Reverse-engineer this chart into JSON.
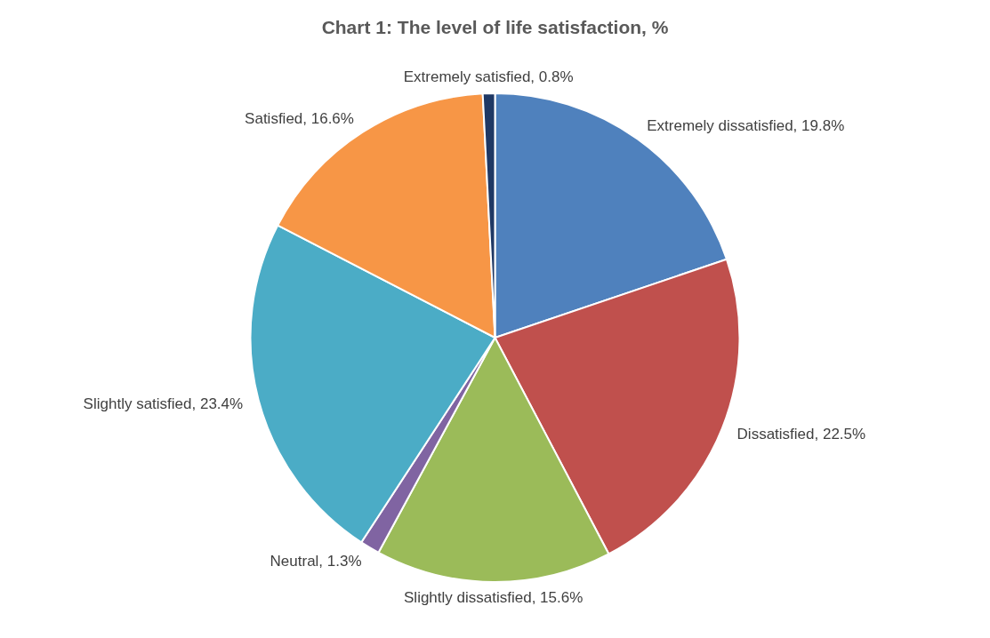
{
  "chart_data": {
    "type": "pie",
    "title": "Chart 1: The level of life satisfaction, %",
    "categories": [
      "Extremely dissatisfied",
      "Dissatisfied",
      "Slightly dissatisfied",
      "Neutral",
      "Slightly satisfied",
      "Satisfied",
      "Extremely satisfied"
    ],
    "values": [
      19.8,
      22.5,
      15.6,
      1.3,
      23.4,
      16.6,
      0.8
    ],
    "value_labels": [
      "19.8%",
      "22.5%",
      "15.6%",
      "1.3%",
      "23.4%",
      "16.6%",
      "0.8%"
    ],
    "colors": [
      "#4f81bd",
      "#c0504d",
      "#9bbb59",
      "#8064a2",
      "#4bacc6",
      "#f79646",
      "#1f3864"
    ]
  }
}
